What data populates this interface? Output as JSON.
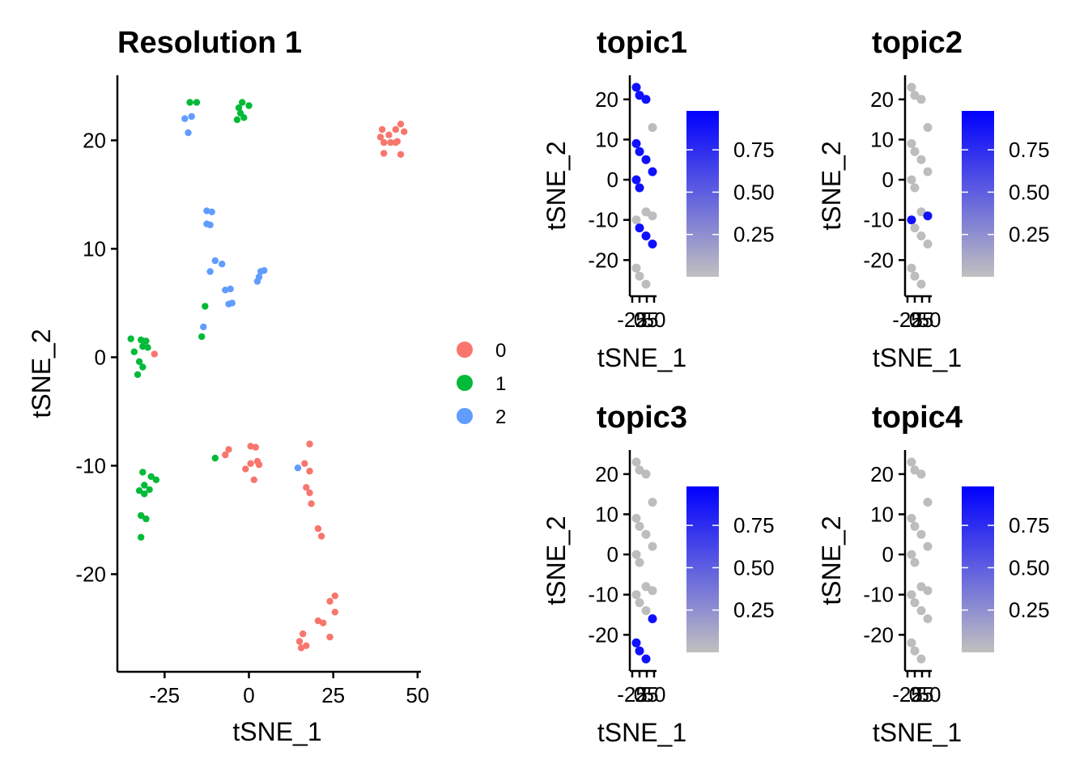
{
  "chart_data": [
    {
      "type": "scatter",
      "title": "Resolution 1",
      "xlabel": "tSNE_1",
      "ylabel": "tSNE_2",
      "xlim": [
        -39,
        51
      ],
      "ylim": [
        -29,
        26
      ],
      "xticks": [
        -25,
        0,
        25,
        50
      ],
      "xtick_labels": [
        "-25",
        "0",
        "25",
        "50"
      ],
      "yticks": [
        -20,
        -10,
        0,
        10,
        20
      ],
      "ytick_labels": [
        "-20",
        "-10",
        "0",
        "10",
        "20"
      ],
      "legend": {
        "position": "right",
        "entries": [
          "0",
          "1",
          "2"
        ],
        "colors": [
          "#F8766D",
          "#00BA38",
          "#619CFF"
        ]
      },
      "series": [
        {
          "name": "0",
          "color": "#F8766D",
          "points": [
            [
              39.5,
              21.0
            ],
            [
              41.5,
              20.5
            ],
            [
              43.5,
              21.0
            ],
            [
              45.0,
              21.5
            ],
            [
              46.0,
              20.8
            ],
            [
              39.0,
              20.3
            ],
            [
              40.0,
              19.8
            ],
            [
              42.0,
              19.8
            ],
            [
              43.5,
              19.8
            ],
            [
              44.0,
              19.9
            ],
            [
              40.0,
              18.8
            ],
            [
              45.0,
              18.7
            ],
            [
              -28.0,
              0.3
            ],
            [
              -6.0,
              -8.5
            ],
            [
              -7.0,
              -9.0
            ],
            [
              0.5,
              -8.2
            ],
            [
              2.0,
              -8.3
            ],
            [
              0.5,
              -9.8
            ],
            [
              2.5,
              -9.6
            ],
            [
              3.0,
              -9.9
            ],
            [
              -1.0,
              -10.3
            ],
            [
              1.5,
              -11.3
            ],
            [
              18.0,
              -8.0
            ],
            [
              16.5,
              -9.8
            ],
            [
              18.0,
              -10.5
            ],
            [
              17.0,
              -12.0
            ],
            [
              18.0,
              -12.5
            ],
            [
              18.5,
              -13.5
            ],
            [
              20.5,
              -15.8
            ],
            [
              21.5,
              -16.5
            ],
            [
              25.5,
              -22.0
            ],
            [
              24.0,
              -22.5
            ],
            [
              25.5,
              -23.5
            ],
            [
              20.5,
              -24.3
            ],
            [
              22.0,
              -24.5
            ],
            [
              16.0,
              -25.5
            ],
            [
              15.0,
              -26.2
            ],
            [
              17.0,
              -26.6
            ],
            [
              15.5,
              -26.8
            ],
            [
              24.0,
              -25.8
            ]
          ]
        },
        {
          "name": "1",
          "color": "#00BA38",
          "points": [
            [
              -17.5,
              23.5
            ],
            [
              -15.5,
              23.5
            ],
            [
              -3.0,
              23.0
            ],
            [
              -2.0,
              23.5
            ],
            [
              0.0,
              23.2
            ],
            [
              -2.5,
              22.5
            ],
            [
              -3.5,
              21.9
            ],
            [
              -1.5,
              22.1
            ],
            [
              -13.0,
              4.7
            ],
            [
              -14.0,
              1.9
            ],
            [
              -35.0,
              1.7
            ],
            [
              -32.0,
              1.6
            ],
            [
              -30.5,
              1.5
            ],
            [
              -31.5,
              1.0
            ],
            [
              -30.0,
              0.9
            ],
            [
              -34.0,
              0.5
            ],
            [
              -32.5,
              -0.4
            ],
            [
              -31.5,
              -0.9
            ],
            [
              -33.0,
              -1.6
            ],
            [
              -10.0,
              -9.3
            ],
            [
              -31.5,
              -10.6
            ],
            [
              -29.0,
              -11.0
            ],
            [
              -27.5,
              -11.3
            ],
            [
              -31.0,
              -11.8
            ],
            [
              -32.5,
              -12.3
            ],
            [
              -31.0,
              -12.6
            ],
            [
              -29.5,
              -12.2
            ],
            [
              -32.0,
              -14.6
            ],
            [
              -30.5,
              -14.9
            ],
            [
              -32.0,
              -16.6
            ]
          ]
        },
        {
          "name": "2",
          "color": "#619CFF",
          "points": [
            [
              -19.0,
              22.0
            ],
            [
              -17.0,
              22.2
            ],
            [
              -18.0,
              20.7
            ],
            [
              -12.5,
              13.5
            ],
            [
              -11.0,
              13.4
            ],
            [
              -12.5,
              12.3
            ],
            [
              -11.5,
              12.2
            ],
            [
              -10.0,
              8.9
            ],
            [
              -8.0,
              8.6
            ],
            [
              -11.5,
              7.9
            ],
            [
              -7.0,
              6.2
            ],
            [
              -5.5,
              6.3
            ],
            [
              -6.0,
              4.9
            ],
            [
              -5.0,
              5.0
            ],
            [
              4.5,
              8.0
            ],
            [
              3.5,
              7.9
            ],
            [
              3.0,
              7.4
            ],
            [
              2.5,
              7.0
            ],
            [
              -13.5,
              2.8
            ],
            [
              14.5,
              -10.2
            ]
          ]
        },
        {
          "title": "topic1",
          "type": "scatter",
          "xlabel": "tSNE_1",
          "ylabel": "tSNE_2",
          "xticks": [
            -25,
            0,
            25,
            50
          ],
          "xtick_labels": [
            "-25",
            "0",
            "25",
            "50"
          ],
          "yticks": [
            -20,
            -10,
            0,
            10,
            20
          ],
          "ytick_labels": [
            "-20",
            "-10",
            "0",
            "10",
            "20"
          ],
          "ylim": [
            -29,
            26
          ],
          "colorbar": {
            "low": "#C0C0C0",
            "high": "#0000FF",
            "ticks": [
              0.25,
              0.5,
              0.75
            ],
            "tick_labels": [
              "0.25",
              "0.50",
              "0.75"
            ]
          },
          "points": []
        },
        {
          "title": "topic2",
          "type": "scatter",
          "xlabel": "tSNE_1",
          "ylabel": "tSNE_2",
          "xticks": [
            -25,
            0,
            25,
            50
          ],
          "xtick_labels": [
            "-25",
            "0",
            "25",
            "50"
          ],
          "yticks": [
            -20,
            -10,
            0,
            10,
            20
          ],
          "ytick_labels": [
            "-20",
            "-10",
            "0",
            "10",
            "20"
          ],
          "ylim": [
            -29,
            26
          ],
          "colorbar": {
            "low": "#C0C0C0",
            "high": "#0000FF",
            "ticks": [
              0.25,
              0.5,
              0.75
            ],
            "tick_labels": [
              "0.25",
              "0.50",
              "0.75"
            ]
          },
          "points": []
        },
        {
          "title": "topic3",
          "type": "scatter",
          "xlabel": "tSNE_1",
          "ylabel": "tSNE_2",
          "xticks": [
            -25,
            0,
            25,
            50
          ],
          "xtick_labels": [
            "-25",
            "0",
            "25",
            "50"
          ],
          "yticks": [
            -20,
            -10,
            0,
            10,
            20
          ],
          "ytick_labels": [
            "-20",
            "-10",
            "0",
            "10",
            "20"
          ],
          "ylim": [
            -29,
            26
          ],
          "colorbar": {
            "low": "#C0C0C0",
            "high": "#0000FF",
            "ticks": [
              0.25,
              0.5,
              0.75
            ],
            "tick_labels": [
              "0.25",
              "0.50",
              "0.75"
            ]
          },
          "points": []
        },
        {
          "title": "topic4",
          "type": "scatter",
          "xlabel": "tSNE_1",
          "ylabel": "tSNE_2",
          "xticks": [
            -25,
            0,
            25,
            50
          ],
          "xtick_labels": [
            "-25",
            "0",
            "25",
            "50"
          ],
          "yticks": [
            -20,
            -10,
            0,
            10,
            20
          ],
          "ytick_labels": [
            "-20",
            "-10",
            "0",
            "10",
            "20"
          ],
          "ylim": [
            -29,
            26
          ],
          "colorbar": {
            "low": "#C0C0C0",
            "high": "#0000FF",
            "ticks": [
              0.25,
              0.5,
              0.75
            ],
            "tick_labels": [
              "0.25",
              "0.50",
              "0.75"
            ]
          },
          "points": []
        }
      ]
    }
  ]
}
